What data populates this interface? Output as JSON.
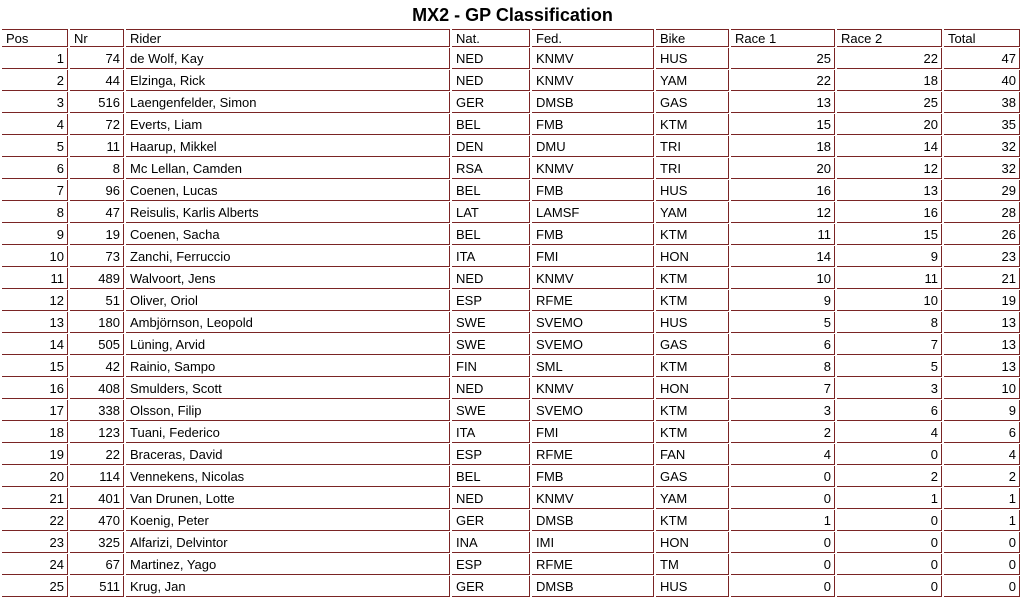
{
  "title": "MX2 - GP Classification",
  "colors": {
    "border": "#7a2424",
    "text": "#000000",
    "background": "#ffffff"
  },
  "table": {
    "columns": [
      {
        "key": "pos",
        "label": "Pos",
        "align": "right"
      },
      {
        "key": "nr",
        "label": "Nr",
        "align": "right"
      },
      {
        "key": "rider",
        "label": "Rider",
        "align": "left"
      },
      {
        "key": "nat",
        "label": "Nat.",
        "align": "left"
      },
      {
        "key": "fed",
        "label": "Fed.",
        "align": "left"
      },
      {
        "key": "bike",
        "label": "Bike",
        "align": "left"
      },
      {
        "key": "race1",
        "label": "Race 1",
        "align": "right"
      },
      {
        "key": "race2",
        "label": "Race 2",
        "align": "right"
      },
      {
        "key": "total",
        "label": "Total",
        "align": "right"
      }
    ],
    "rows": [
      [
        1,
        74,
        "de Wolf, Kay",
        "NED",
        "KNMV",
        "HUS",
        25,
        22,
        47
      ],
      [
        2,
        44,
        "Elzinga, Rick",
        "NED",
        "KNMV",
        "YAM",
        22,
        18,
        40
      ],
      [
        3,
        516,
        "Laengenfelder, Simon",
        "GER",
        "DMSB",
        "GAS",
        13,
        25,
        38
      ],
      [
        4,
        72,
        "Everts, Liam",
        "BEL",
        "FMB",
        "KTM",
        15,
        20,
        35
      ],
      [
        5,
        11,
        "Haarup, Mikkel",
        "DEN",
        "DMU",
        "TRI",
        18,
        14,
        32
      ],
      [
        6,
        8,
        "Mc Lellan, Camden",
        "RSA",
        "KNMV",
        "TRI",
        20,
        12,
        32
      ],
      [
        7,
        96,
        "Coenen, Lucas",
        "BEL",
        "FMB",
        "HUS",
        16,
        13,
        29
      ],
      [
        8,
        47,
        "Reisulis, Karlis Alberts",
        "LAT",
        "LAMSF",
        "YAM",
        12,
        16,
        28
      ],
      [
        9,
        19,
        "Coenen, Sacha",
        "BEL",
        "FMB",
        "KTM",
        11,
        15,
        26
      ],
      [
        10,
        73,
        "Zanchi, Ferruccio",
        "ITA",
        "FMI",
        "HON",
        14,
        9,
        23
      ],
      [
        11,
        489,
        "Walvoort, Jens",
        "NED",
        "KNMV",
        "KTM",
        10,
        11,
        21
      ],
      [
        12,
        51,
        "Oliver, Oriol",
        "ESP",
        "RFME",
        "KTM",
        9,
        10,
        19
      ],
      [
        13,
        180,
        "Ambjörnson, Leopold",
        "SWE",
        "SVEMO",
        "HUS",
        5,
        8,
        13
      ],
      [
        14,
        505,
        "Lüning, Arvid",
        "SWE",
        "SVEMO",
        "GAS",
        6,
        7,
        13
      ],
      [
        15,
        42,
        "Rainio, Sampo",
        "FIN",
        "SML",
        "KTM",
        8,
        5,
        13
      ],
      [
        16,
        408,
        "Smulders, Scott",
        "NED",
        "KNMV",
        "HON",
        7,
        3,
        10
      ],
      [
        17,
        338,
        "Olsson, Filip",
        "SWE",
        "SVEMO",
        "KTM",
        3,
        6,
        9
      ],
      [
        18,
        123,
        "Tuani, Federico",
        "ITA",
        "FMI",
        "KTM",
        2,
        4,
        6
      ],
      [
        19,
        22,
        "Braceras, David",
        "ESP",
        "RFME",
        "FAN",
        4,
        0,
        4
      ],
      [
        20,
        114,
        "Vennekens, Nicolas",
        "BEL",
        "FMB",
        "GAS",
        0,
        2,
        2
      ],
      [
        21,
        401,
        "Van Drunen, Lotte",
        "NED",
        "KNMV",
        "YAM",
        0,
        1,
        1
      ],
      [
        22,
        470,
        "Koenig, Peter",
        "GER",
        "DMSB",
        "KTM",
        1,
        0,
        1
      ],
      [
        23,
        325,
        "Alfarizi, Delvintor",
        "INA",
        "IMI",
        "HON",
        0,
        0,
        0
      ],
      [
        24,
        67,
        "Martinez, Yago",
        "ESP",
        "RFME",
        "TM",
        0,
        0,
        0
      ],
      [
        25,
        511,
        "Krug, Jan",
        "GER",
        "DMSB",
        "HUS",
        0,
        0,
        0
      ]
    ]
  }
}
